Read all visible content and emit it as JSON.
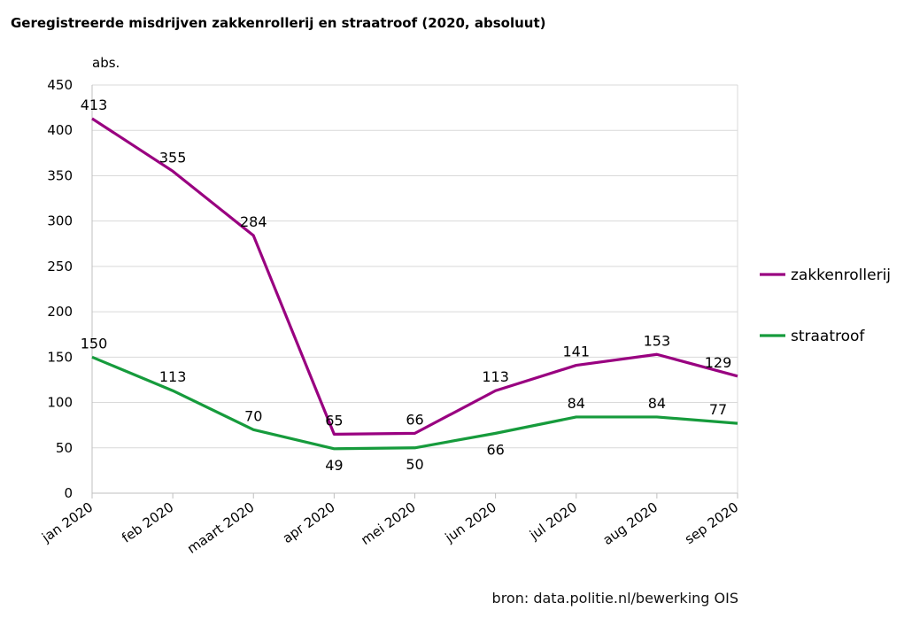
{
  "chart_data": {
    "type": "line",
    "title": "Geregistreerde misdrijven zakkenrollerij en straatroof (2020, absoluut)",
    "ylabel": "abs.",
    "xlabel": "",
    "categories": [
      "jan 2020",
      "feb 2020",
      "maart 2020",
      "apr 2020",
      "mei 2020",
      "jun 2020",
      "jul 2020",
      "aug 2020",
      "sep 2020"
    ],
    "ylim": [
      0,
      450
    ],
    "yticks": [
      0,
      50,
      100,
      150,
      200,
      250,
      300,
      350,
      400,
      450
    ],
    "grid": true,
    "legend_position": "right",
    "series": [
      {
        "name": "zakkenrollerij",
        "color": "#990080",
        "values": [
          413,
          355,
          284,
          65,
          66,
          113,
          141,
          153,
          129
        ]
      },
      {
        "name": "straatroof",
        "color": "#169b3c",
        "values": [
          150,
          113,
          70,
          49,
          50,
          66,
          84,
          84,
          77
        ]
      }
    ],
    "source": "bron: data.politie.nl/bewerking OIS"
  }
}
